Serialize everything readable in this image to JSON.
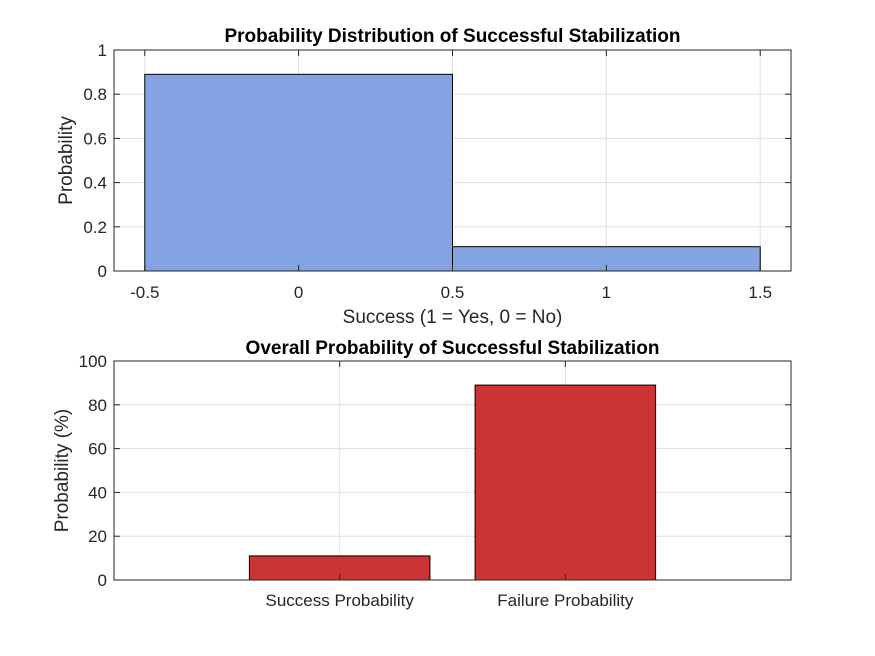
{
  "colors": {
    "histogram_bar": "#84a3e2",
    "bar": "#cc3333"
  },
  "chart_data": [
    {
      "type": "bar",
      "title": "Probability Distribution of Successful Stabilization",
      "xlabel": "Success (1 = Yes, 0 = No)",
      "ylabel": "Probability",
      "xlim": [
        -0.6,
        1.6
      ],
      "ylim": [
        0,
        1
      ],
      "xticks": [
        -0.5,
        0,
        0.5,
        1,
        1.5
      ],
      "xtick_labels": [
        "-0.5",
        "0",
        "0.5",
        "1",
        "1.5"
      ],
      "yticks": [
        0,
        0.2,
        0.4,
        0.6,
        0.8,
        1
      ],
      "ytick_labels": [
        "0",
        "0.2",
        "0.4",
        "0.6",
        "0.8",
        "1"
      ],
      "grid": true,
      "bins": [
        {
          "start": -0.5,
          "end": 0.5,
          "value": 0.89
        },
        {
          "start": 0.5,
          "end": 1.5,
          "value": 0.11
        }
      ]
    },
    {
      "type": "bar",
      "title": "Overall Probability of Successful Stabilization",
      "xlabel": "",
      "ylabel": "Probability (%)",
      "ylim": [
        0,
        100
      ],
      "yticks": [
        0,
        20,
        40,
        60,
        80,
        100
      ],
      "ytick_labels": [
        "0",
        "20",
        "40",
        "60",
        "80",
        "100"
      ],
      "grid": true,
      "categories": [
        "Success Probability",
        "Failure Probability"
      ],
      "values": [
        11,
        89
      ]
    }
  ]
}
